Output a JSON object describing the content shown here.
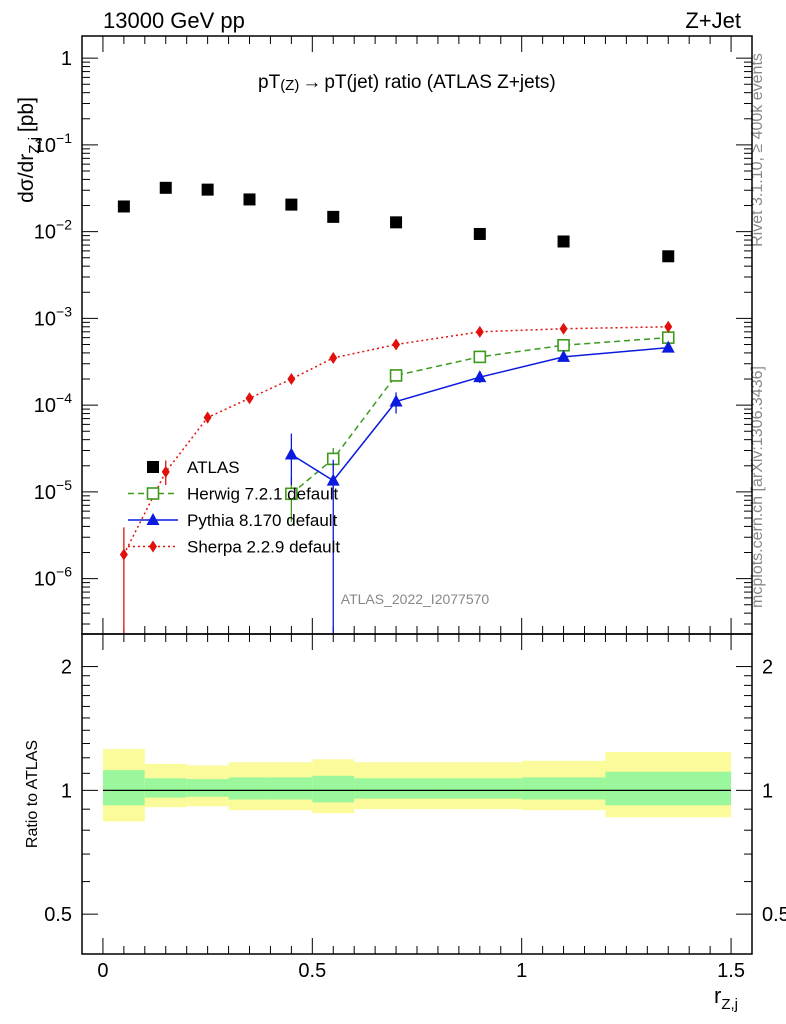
{
  "header": {
    "left": "13000 GeV pp",
    "right": "Z+Jet"
  },
  "side_labels": {
    "rivet": "Rivet 3.1.10, ≥ 400k events",
    "mcplots": "mcplots.cern.ch [arXiv:1306.3436]"
  },
  "watermark": "ATLAS_2022_I2077570",
  "colors": {
    "atlas": "#000000",
    "herwig": "#3c9a1c",
    "pythia": "#0a1adf",
    "sherpa": "#e0100c",
    "band_inner": "#9bf79b",
    "band_outer": "#fbfb9b"
  },
  "chart_data": [
    {
      "type": "scatter",
      "title": "pT(Z) → pT(jet) ratio (ATLAS Z+jets)",
      "title_parts": {
        "main": "pT",
        "sub1": "(Z)",
        "arrow": "→",
        "rest": "pT(jet) ratio (ATLAS Z+jets)"
      },
      "ylabel": "dσ/dr",
      "ylabel_sub": "Z,j",
      "ylabel_unit": "[pb]",
      "xlim": [
        -0.05,
        1.55
      ],
      "ylim": [
        2.3e-07,
        1.8
      ],
      "yscale": "log",
      "ytick_labels": [
        {
          "value": 1,
          "base": "1",
          "exp": ""
        },
        {
          "value": 0.1,
          "base": "10",
          "exp": "−1"
        },
        {
          "value": 0.01,
          "base": "10",
          "exp": "−2"
        },
        {
          "value": 0.001,
          "base": "10",
          "exp": "−3"
        },
        {
          "value": 0.0001,
          "base": "10",
          "exp": "−4"
        },
        {
          "value": 1e-05,
          "base": "10",
          "exp": "−5"
        },
        {
          "value": 1e-06,
          "base": "10",
          "exp": "−6"
        }
      ],
      "legend_placement": "lower-left",
      "series": [
        {
          "name": "ATLAS",
          "marker": "square",
          "x": [
            0.05,
            0.15,
            0.25,
            0.35,
            0.45,
            0.55,
            0.7,
            0.9,
            1.1,
            1.35
          ],
          "y": [
            0.0195,
            0.032,
            0.0305,
            0.0235,
            0.0205,
            0.0148,
            0.0128,
            0.0094,
            0.0077,
            0.0052
          ]
        },
        {
          "name": "Herwig 7.2.1 default",
          "marker": "open-square",
          "line": "dashed",
          "x": [
            0.45,
            0.55,
            0.7,
            0.9,
            1.1,
            1.35
          ],
          "y": [
            9.5e-06,
            2.4e-05,
            0.00022,
            0.00036,
            0.00049,
            0.0006
          ],
          "err_low": [
            5e-06,
            6e-06,
            2.5e-05,
            2.5e-05,
            3e-05,
            3e-05
          ],
          "err_high": [
            5e-06,
            8e-06,
            2.5e-05,
            2.5e-05,
            3e-05,
            3e-05
          ]
        },
        {
          "name": "Pythia 8.170 default",
          "marker": "triangle",
          "line": "solid",
          "x": [
            0.45,
            0.55,
            0.7,
            0.9,
            1.1,
            1.35
          ],
          "y": [
            2.7e-05,
            1.35e-05,
            0.00011,
            0.00021,
            0.00036,
            0.00046
          ],
          "err_low": [
            1.5e-05,
            1.34e-05,
            3e-05,
            3e-05,
            3e-05,
            3e-05
          ],
          "err_high": [
            2e-05,
            1e-05,
            3e-05,
            3e-05,
            3e-05,
            3e-05
          ]
        },
        {
          "name": "Sherpa 2.2.9 default",
          "marker": "diamond",
          "line": "dotted",
          "x": [
            0.05,
            0.15,
            0.25,
            0.35,
            0.45,
            0.55,
            0.7,
            0.9,
            1.1,
            1.35
          ],
          "y": [
            1.9e-06,
            1.7e-05,
            7.2e-05,
            0.00012,
            0.0002,
            0.00035,
            0.0005,
            0.0007,
            0.00076,
            0.0008
          ],
          "err_low": [
            1.89e-06,
            5e-06,
            1e-05,
            1e-05,
            1.5e-05,
            2e-05,
            2e-05,
            2e-05,
            2e-05,
            2e-05
          ],
          "err_high": [
            2e-06,
            6e-06,
            1e-05,
            1e-05,
            1.5e-05,
            2e-05,
            2e-05,
            2e-05,
            2e-05,
            2e-05
          ]
        }
      ]
    },
    {
      "type": "area",
      "ylabel": "Ratio to ATLAS",
      "xlabel": "r",
      "xlabel_sub": "Z,j",
      "xlim": [
        -0.05,
        1.55
      ],
      "ylim": [
        0.4,
        2.4
      ],
      "yscale": "log",
      "ytick_labels": [
        {
          "value": 2,
          "text": "2"
        },
        {
          "value": 1,
          "text": "1"
        },
        {
          "value": 0.5,
          "text": "0.5"
        }
      ],
      "xtick_labels": [
        {
          "value": 0,
          "text": "0"
        },
        {
          "value": 0.5,
          "text": "0.5"
        },
        {
          "value": 1,
          "text": "1"
        },
        {
          "value": 1.5,
          "text": "1.5"
        }
      ],
      "bins": [
        [
          0.0,
          0.1
        ],
        [
          0.1,
          0.2
        ],
        [
          0.2,
          0.3
        ],
        [
          0.3,
          0.4
        ],
        [
          0.4,
          0.5
        ],
        [
          0.5,
          0.6
        ],
        [
          0.6,
          0.8
        ],
        [
          0.8,
          1.0
        ],
        [
          1.0,
          1.2
        ],
        [
          1.2,
          1.5
        ]
      ],
      "inner_band": [
        [
          0.92,
          1.12
        ],
        [
          0.96,
          1.07
        ],
        [
          0.965,
          1.065
        ],
        [
          0.95,
          1.075
        ],
        [
          0.95,
          1.075
        ],
        [
          0.935,
          1.085
        ],
        [
          0.955,
          1.07
        ],
        [
          0.955,
          1.07
        ],
        [
          0.95,
          1.075
        ],
        [
          0.92,
          1.11
        ]
      ],
      "outer_band": [
        [
          0.84,
          1.26
        ],
        [
          0.91,
          1.16
        ],
        [
          0.915,
          1.15
        ],
        [
          0.895,
          1.17
        ],
        [
          0.895,
          1.17
        ],
        [
          0.88,
          1.19
        ],
        [
          0.9,
          1.17
        ],
        [
          0.9,
          1.17
        ],
        [
          0.895,
          1.18
        ],
        [
          0.86,
          1.24
        ]
      ]
    }
  ]
}
